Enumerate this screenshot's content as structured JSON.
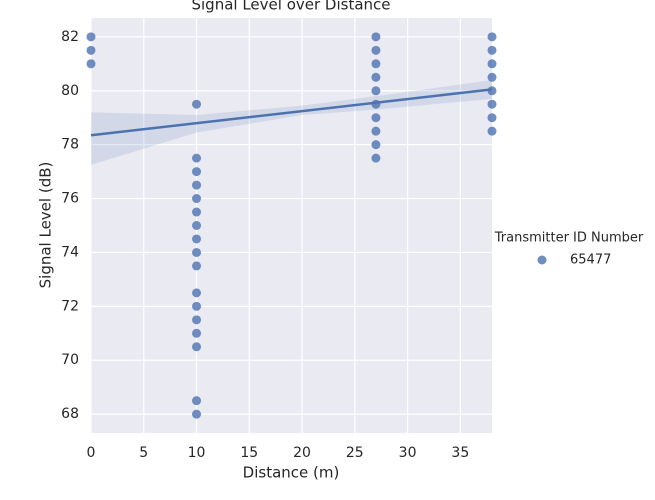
{
  "chart_data": {
    "type": "scatter",
    "title": "Signal Level over Distance",
    "x_label": "Distance (m)",
    "y_label": "Signal Level (dB)",
    "legend_title": "Transmitter ID Number",
    "legend_position": "right",
    "xlim": [
      0,
      38
    ],
    "ylim": [
      67.3,
      82.7
    ],
    "xticks": [
      0,
      5,
      10,
      15,
      20,
      25,
      30,
      35
    ],
    "yticks": [
      68,
      70,
      72,
      74,
      76,
      78,
      80,
      82
    ],
    "grid": true,
    "series": [
      {
        "name": "65477",
        "color": "#4c72b0",
        "x": [
          0,
          0,
          0,
          10,
          10,
          10,
          10,
          10,
          10,
          10,
          10,
          10,
          10,
          10,
          10,
          10,
          10,
          10,
          10,
          10,
          27,
          27,
          27,
          27,
          27,
          27,
          27,
          27,
          27,
          27,
          38,
          38,
          38,
          38,
          38,
          38,
          38,
          38
        ],
        "values": [
          82,
          81.5,
          81,
          79.5,
          77.5,
          77,
          76.5,
          76,
          75.5,
          75,
          74.5,
          74,
          73.5,
          72.5,
          72,
          71.5,
          71,
          70.5,
          68.5,
          68,
          82,
          81.5,
          81,
          80.5,
          80,
          79.5,
          79,
          78.5,
          78,
          77.5,
          82,
          81.5,
          81,
          80.5,
          80,
          79.5,
          79,
          78.5
        ]
      }
    ],
    "trend": {
      "x": [
        0,
        38
      ],
      "values": [
        78.35,
        80.05
      ]
    },
    "band": {
      "x": [
        0,
        10,
        20,
        27,
        38
      ],
      "lower": [
        77.25,
        78.45,
        79.1,
        79.3,
        79.7
      ],
      "upper": [
        79.2,
        79.1,
        79.45,
        79.8,
        80.4
      ]
    }
  }
}
